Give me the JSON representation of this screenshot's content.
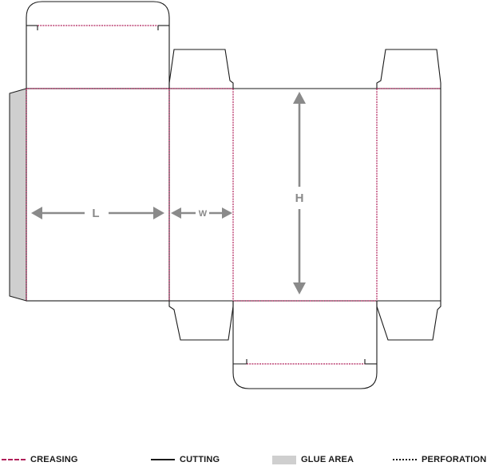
{
  "dimensions": {
    "length_label": "L",
    "width_label": "W",
    "height_label": "H"
  },
  "legend": {
    "creasing": "CREASING",
    "cutting": "CUTTING",
    "glue_area": "GLUE AREA",
    "perforation": "PERFORATION"
  },
  "colors": {
    "crease": "#b0205a",
    "cut": "#1a1a1a",
    "glue": "#cfcfcf",
    "dimension": "#8a8a8a"
  }
}
